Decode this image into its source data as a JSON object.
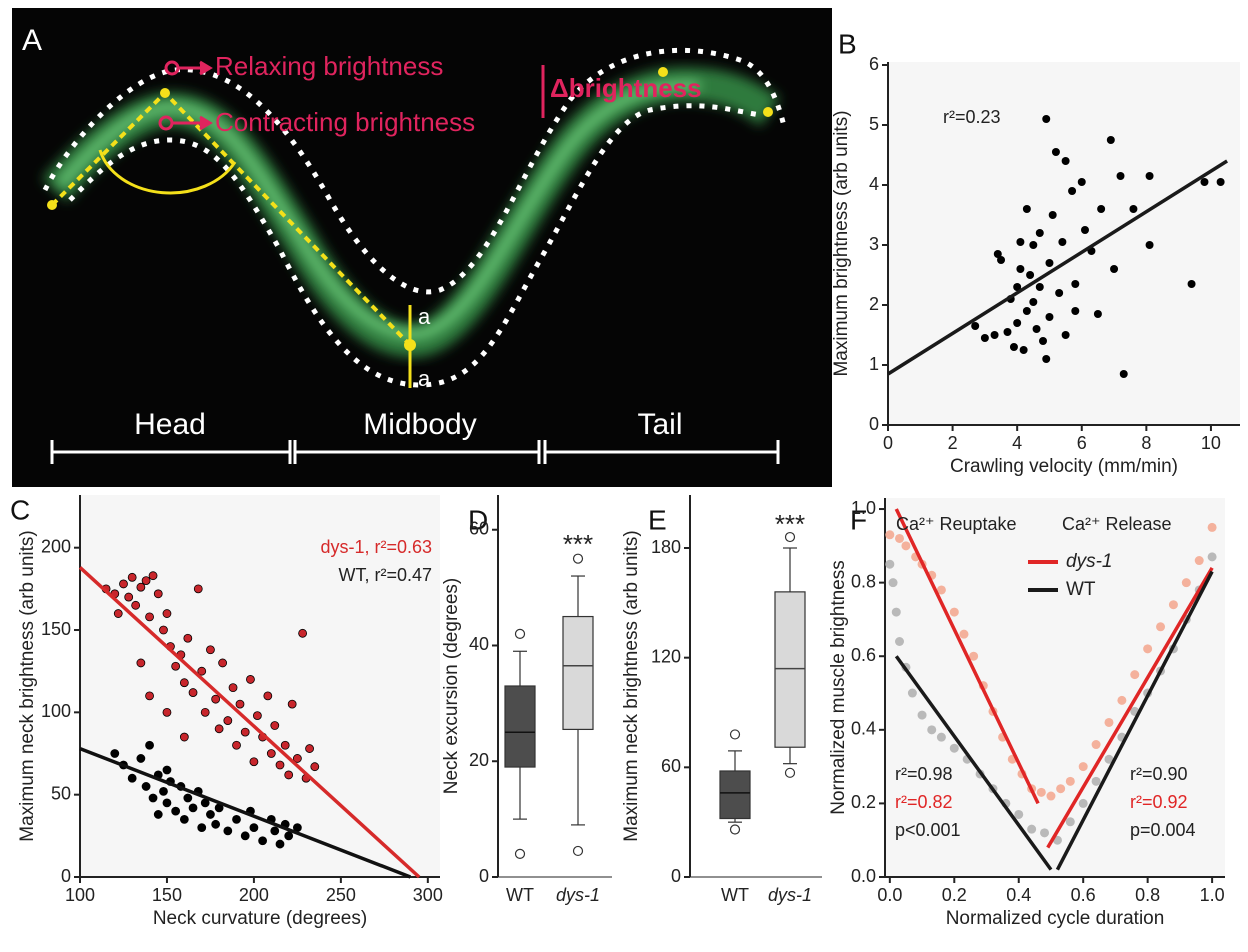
{
  "panel_a": {
    "label": "A",
    "relaxing": "Relaxing brightness",
    "contracting": "Contracting brightness",
    "delta": "Δbrightness",
    "a_top": "a",
    "a_bottom": "a",
    "segments": [
      "Head",
      "Midbody",
      "Tail"
    ]
  },
  "chart_data": [
    {
      "type": "scatter",
      "panel_label": "B",
      "xlabel": "Crawling velocity (mm/min)",
      "ylabel": "Maximum brightness (arb units)",
      "xlim": [
        0,
        10.9
      ],
      "ylim": [
        0,
        6.05
      ],
      "xticks": [
        0,
        2,
        4,
        6,
        8,
        10
      ],
      "yticks": [
        0,
        1,
        2,
        3,
        4,
        5,
        6
      ],
      "series": [
        {
          "color": "#000000",
          "x": [
            2.7,
            3,
            3.3,
            3.4,
            3.5,
            3.7,
            3.8,
            3.9,
            4,
            4,
            4.1,
            4.1,
            4.2,
            4.3,
            4.3,
            4.4,
            4.5,
            4.5,
            4.6,
            4.7,
            4.7,
            4.8,
            4.9,
            4.9,
            5,
            5,
            5.1,
            5.2,
            5.3,
            5.4,
            5.5,
            5.5,
            5.7,
            5.8,
            5.8,
            6,
            6.1,
            6.3,
            6.5,
            6.6,
            6.9,
            7,
            7.2,
            7.3,
            7.6,
            8.1,
            8.1,
            9.4,
            9.8,
            10.3
          ],
          "values": [
            1.65,
            1.45,
            1.5,
            2.85,
            2.75,
            1.55,
            2.1,
            1.3,
            1.7,
            2.3,
            3.05,
            2.6,
            1.25,
            3.6,
            1.9,
            2.5,
            2.05,
            3,
            1.6,
            2.3,
            3.2,
            1.4,
            5.1,
            1.1,
            2.7,
            1.8,
            3.5,
            4.55,
            2.2,
            3.05,
            4.4,
            1.5,
            3.9,
            2.35,
            1.9,
            4.05,
            3.25,
            2.9,
            1.85,
            3.6,
            4.75,
            2.6,
            4.15,
            0.85,
            3.6,
            4.15,
            3,
            2.35,
            4.05,
            4.05
          ]
        }
      ],
      "fits": [
        {
          "color": "#1a1a1a",
          "x": [
            0,
            10.5
          ],
          "y": [
            0.85,
            4.4
          ]
        }
      ],
      "annotations": [
        {
          "text": "r²=0.23",
          "color": "#222222"
        }
      ]
    },
    {
      "type": "scatter",
      "panel_label": "C",
      "xlabel": "Neck curvature (degrees)",
      "ylabel": "Maximum neck brightness (arb units)",
      "xlim": [
        100,
        307
      ],
      "ylim": [
        0,
        232
      ],
      "xticks": [
        100,
        150,
        200,
        250,
        300
      ],
      "yticks": [
        0,
        50,
        100,
        150,
        200
      ],
      "series": [
        {
          "color": "#c8262c",
          "x": [
            115,
            120,
            122,
            125,
            128,
            130,
            132,
            135,
            138,
            140,
            142,
            145,
            148,
            150,
            152,
            155,
            158,
            160,
            162,
            165,
            168,
            170,
            172,
            175,
            178,
            180,
            182,
            185,
            188,
            190,
            192,
            195,
            198,
            200,
            202,
            205,
            208,
            210,
            212,
            215,
            218,
            220,
            222,
            225,
            228,
            230,
            232,
            235,
            140,
            150,
            160,
            135
          ],
          "values": [
            175,
            172,
            160,
            178,
            170,
            182,
            165,
            176,
            180,
            158,
            183,
            172,
            150,
            160,
            140,
            128,
            135,
            118,
            145,
            112,
            175,
            125,
            100,
            138,
            108,
            90,
            130,
            95,
            115,
            80,
            105,
            88,
            120,
            70,
            98,
            85,
            110,
            75,
            92,
            68,
            80,
            62,
            105,
            72,
            148,
            60,
            78,
            67,
            110,
            100,
            85,
            130
          ]
        },
        {
          "color": "#000000",
          "x": [
            120,
            125,
            130,
            135,
            138,
            140,
            142,
            145,
            148,
            150,
            152,
            155,
            158,
            160,
            162,
            165,
            168,
            170,
            172,
            175,
            178,
            180,
            185,
            190,
            195,
            198,
            200,
            205,
            210,
            212,
            215,
            218,
            220,
            225,
            150,
            145
          ],
          "values": [
            75,
            68,
            60,
            72,
            55,
            80,
            48,
            62,
            52,
            45,
            58,
            40,
            55,
            35,
            48,
            42,
            52,
            30,
            45,
            38,
            32,
            42,
            28,
            35,
            25,
            40,
            30,
            22,
            35,
            28,
            20,
            32,
            25,
            30,
            65,
            38
          ]
        }
      ],
      "fits": [
        {
          "color": "#d62a2a",
          "x": [
            100,
            295
          ],
          "y": [
            188,
            0
          ]
        },
        {
          "color": "#111111",
          "x": [
            100,
            290
          ],
          "y": [
            78,
            0
          ]
        }
      ],
      "annotations": [
        {
          "text": "dys-1, r²=0.63",
          "color": "#d62a2a"
        },
        {
          "text": "WT, r²=0.47",
          "color": "#222222"
        }
      ]
    },
    {
      "type": "box",
      "panel_label": "D",
      "ylabel": "Neck excursion (degrees)",
      "ylim": [
        0,
        66
      ],
      "yticks": [
        0,
        20,
        40,
        60
      ],
      "categories": [
        "WT",
        "dys-1"
      ],
      "colors": [
        "#4d4d4d",
        "#d9d9d9"
      ],
      "boxes": [
        {
          "min": 10,
          "q1": 19,
          "median": 25,
          "q3": 33,
          "max": 39,
          "outliers": [
            42,
            4
          ]
        },
        {
          "min": 9,
          "q1": 25.5,
          "median": 36.5,
          "q3": 45,
          "max": 52,
          "outliers": [
            55,
            4.5
          ]
        }
      ],
      "annotations": [
        {
          "text": "***",
          "color": "#222222"
        }
      ]
    },
    {
      "type": "box",
      "panel_label": "E",
      "ylabel": "Maximum neck brightness (arb units)",
      "ylim": [
        0,
        209
      ],
      "yticks": [
        0,
        60,
        120,
        180
      ],
      "categories": [
        "WT",
        "dys-1"
      ],
      "colors": [
        "#4d4d4d",
        "#d9d9d9"
      ],
      "boxes": [
        {
          "min": 30,
          "q1": 32,
          "median": 46,
          "q3": 58,
          "max": 69,
          "outliers": [
            78,
            26
          ]
        },
        {
          "min": 62,
          "q1": 71,
          "median": 114,
          "q3": 156,
          "max": 180,
          "outliers": [
            186,
            57
          ]
        }
      ],
      "annotations": [
        {
          "text": "***",
          "color": "#222222"
        }
      ]
    },
    {
      "type": "scatter",
      "panel_label": "F",
      "xlabel": "Normalized cycle duration",
      "ylabel": "Normalized muscle brightness",
      "xlim": [
        -0.015,
        1.04
      ],
      "ylim": [
        0,
        1.03
      ],
      "xticks": [
        {
          "value": 0,
          "label": "0.0"
        },
        0.2,
        0.4,
        0.6,
        0.8,
        {
          "value": 1,
          "label": "1.0"
        }
      ],
      "yticks": [
        {
          "value": 0,
          "label": "0.0"
        },
        0.2,
        0.4,
        0.6,
        0.8,
        {
          "value": 1,
          "label": "1.0"
        }
      ],
      "series": [
        {
          "color": "#f4b19c",
          "x": [
            0,
            0.03,
            0.05,
            0.08,
            0.1,
            0.13,
            0.16,
            0.2,
            0.23,
            0.26,
            0.29,
            0.32,
            0.35,
            0.38,
            0.41,
            0.44,
            0.47,
            0.5,
            0.53,
            0.56,
            0.6,
            0.64,
            0.68,
            0.72,
            0.76,
            0.8,
            0.84,
            0.88,
            0.92,
            0.96,
            1
          ],
          "values": [
            0.93,
            0.92,
            0.9,
            0.87,
            0.85,
            0.82,
            0.78,
            0.72,
            0.66,
            0.6,
            0.52,
            0.45,
            0.38,
            0.32,
            0.28,
            0.24,
            0.23,
            0.22,
            0.24,
            0.26,
            0.3,
            0.36,
            0.42,
            0.48,
            0.55,
            0.62,
            0.68,
            0.74,
            0.8,
            0.86,
            0.95
          ]
        },
        {
          "color": "#b9b9b9",
          "x": [
            0,
            0.01,
            0.02,
            0.03,
            0.05,
            0.07,
            0.1,
            0.13,
            0.16,
            0.2,
            0.24,
            0.28,
            0.32,
            0.36,
            0.4,
            0.44,
            0.48,
            0.52,
            0.56,
            0.6,
            0.64,
            0.68,
            0.72,
            0.76,
            0.8,
            0.84,
            0.88,
            0.92,
            0.96,
            1
          ],
          "values": [
            0.85,
            0.8,
            0.72,
            0.64,
            0.57,
            0.5,
            0.44,
            0.4,
            0.38,
            0.35,
            0.32,
            0.28,
            0.24,
            0.2,
            0.17,
            0.13,
            0.12,
            0.1,
            0.15,
            0.2,
            0.26,
            0.32,
            0.38,
            0.45,
            0.5,
            0.56,
            0.62,
            0.7,
            0.78,
            0.87
          ]
        }
      ],
      "fits": [
        {
          "color": "#e02626",
          "x": [
            0.02,
            0.46
          ],
          "y": [
            1,
            0.2
          ]
        },
        {
          "color": "#e02626",
          "x": [
            0.49,
            1
          ],
          "y": [
            0.08,
            0.84
          ]
        },
        {
          "color": "#1a1a1a",
          "x": [
            0.02,
            0.5
          ],
          "y": [
            0.6,
            0.02
          ]
        },
        {
          "color": "#1a1a1a",
          "x": [
            0.52,
            1
          ],
          "y": [
            0.02,
            0.83
          ]
        }
      ],
      "legend": [
        {
          "name": "dys-1",
          "color": "#e02626"
        },
        {
          "name": "WT",
          "color": "#1a1a1a"
        }
      ],
      "annotations": [
        {
          "text": "Ca²⁺ Reuptake",
          "color": "#222222"
        },
        {
          "text": "Ca²⁺ Release",
          "color": "#222222"
        },
        {
          "text": "r²=0.98",
          "color": "#222222"
        },
        {
          "text": "r²=0.82",
          "color": "#e02626"
        },
        {
          "text": "p<0.001",
          "color": "#222222"
        },
        {
          "text": "r²=0.90",
          "color": "#222222"
        },
        {
          "text": "r²=0.92",
          "color": "#e02626"
        },
        {
          "text": "p=0.004",
          "color": "#222222"
        }
      ]
    }
  ]
}
